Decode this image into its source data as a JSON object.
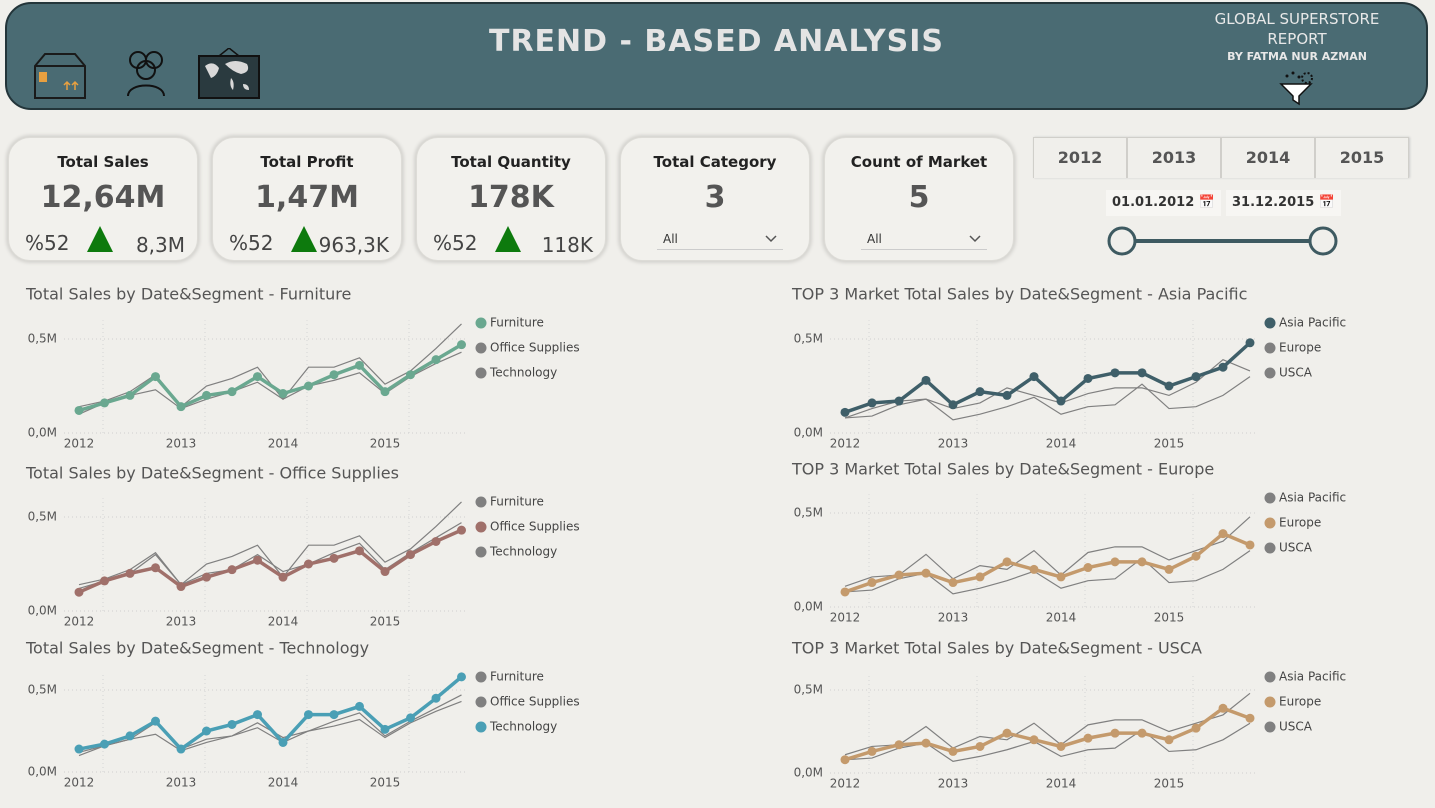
{
  "header": {
    "title": "TREND - BASED ANALYSIS",
    "report": "GLOBAL SUPERSTORE REPORT",
    "author": "BY FATMA NUR AZMAN"
  },
  "kpis": [
    {
      "title": "Total Sales",
      "value": "12,64M",
      "percent": "%52",
      "target": "8,3M"
    },
    {
      "title": "Total Profit",
      "value": "1,47M",
      "percent": "%52",
      "target": "963,3K"
    },
    {
      "title": "Total Quantity",
      "value": "178K",
      "percent": "%52",
      "target": "118K"
    },
    {
      "title": "Total Category",
      "value": 3,
      "filter": "All"
    },
    {
      "title": "Count of Market",
      "value": 5,
      "filter": "All"
    }
  ],
  "year_tabs": [
    "2012",
    "2013",
    "2014",
    "2015"
  ],
  "date_range": {
    "start": "01.01.2012",
    "end": "31.12.2015"
  },
  "chart_data": [
    {
      "type": "line",
      "title": "Total Sales by Date&Segment - Furniture",
      "categories": [
        "2012",
        null,
        null,
        null,
        "2013",
        null,
        null,
        null,
        "2014",
        null,
        null,
        null,
        "2015",
        null,
        null,
        null
      ],
      "ylim": [
        0,
        0.6
      ],
      "yticks": [
        {
          "value": 0,
          "label": "0,0M"
        },
        {
          "value": 0.5,
          "label": "0,5M"
        }
      ],
      "grid": true,
      "series": [
        {
          "name": "Furniture",
          "color": "#6aa890",
          "markers": true,
          "values": [
            0.12,
            0.16,
            0.2,
            0.3,
            0.14,
            0.2,
            0.22,
            0.3,
            0.21,
            0.25,
            0.31,
            0.36,
            0.22,
            0.31,
            0.39,
            0.47
          ]
        },
        {
          "name": "Office Supplies",
          "color": "#808080",
          "markers": false,
          "values": [
            0.1,
            0.16,
            0.2,
            0.23,
            0.13,
            0.18,
            0.22,
            0.27,
            0.18,
            0.25,
            0.28,
            0.32,
            0.21,
            0.3,
            0.37,
            0.43
          ]
        },
        {
          "name": "Technology",
          "color": "#808080",
          "markers": false,
          "values": [
            0.14,
            0.17,
            0.22,
            0.31,
            0.14,
            0.25,
            0.29,
            0.35,
            0.18,
            0.35,
            0.35,
            0.4,
            0.26,
            0.33,
            0.45,
            0.58
          ]
        }
      ]
    },
    {
      "type": "line",
      "title": "Total Sales by Date&Segment - Office Supplies",
      "categories": [
        "2012",
        null,
        null,
        null,
        "2013",
        null,
        null,
        null,
        "2014",
        null,
        null,
        null,
        "2015",
        null,
        null,
        null
      ],
      "ylim": [
        0,
        0.6
      ],
      "yticks": [
        {
          "value": 0,
          "label": "0,0M"
        },
        {
          "value": 0.5,
          "label": "0,5M"
        }
      ],
      "grid": true,
      "series": [
        {
          "name": "Furniture",
          "color": "#808080",
          "markers": false,
          "values": [
            0.12,
            0.16,
            0.2,
            0.3,
            0.14,
            0.2,
            0.22,
            0.3,
            0.21,
            0.25,
            0.31,
            0.36,
            0.22,
            0.31,
            0.39,
            0.47
          ]
        },
        {
          "name": "Office Supplies",
          "color": "#a0706a",
          "markers": true,
          "values": [
            0.1,
            0.16,
            0.2,
            0.23,
            0.13,
            0.18,
            0.22,
            0.27,
            0.18,
            0.25,
            0.28,
            0.32,
            0.21,
            0.3,
            0.37,
            0.43
          ]
        },
        {
          "name": "Technology",
          "color": "#808080",
          "markers": false,
          "values": [
            0.14,
            0.17,
            0.22,
            0.31,
            0.14,
            0.25,
            0.29,
            0.35,
            0.18,
            0.35,
            0.35,
            0.4,
            0.26,
            0.33,
            0.45,
            0.58
          ]
        }
      ]
    },
    {
      "type": "line",
      "title": "Total Sales by Date&Segment - Technology",
      "categories": [
        "2012",
        null,
        null,
        null,
        "2013",
        null,
        null,
        null,
        "2014",
        null,
        null,
        null,
        "2015",
        null,
        null,
        null
      ],
      "ylim": [
        0,
        0.6
      ],
      "yticks": [
        {
          "value": 0,
          "label": "0,0M"
        },
        {
          "value": 0.5,
          "label": "0,5M"
        }
      ],
      "grid": true,
      "series": [
        {
          "name": "Furniture",
          "color": "#808080",
          "markers": false,
          "values": [
            0.12,
            0.16,
            0.2,
            0.3,
            0.14,
            0.2,
            0.22,
            0.3,
            0.21,
            0.25,
            0.31,
            0.36,
            0.22,
            0.31,
            0.39,
            0.47
          ]
        },
        {
          "name": "Office Supplies",
          "color": "#808080",
          "markers": false,
          "values": [
            0.1,
            0.16,
            0.2,
            0.23,
            0.13,
            0.18,
            0.22,
            0.27,
            0.18,
            0.25,
            0.28,
            0.32,
            0.21,
            0.3,
            0.37,
            0.43
          ]
        },
        {
          "name": "Technology",
          "color": "#4a9fb5",
          "markers": true,
          "values": [
            0.14,
            0.17,
            0.22,
            0.31,
            0.14,
            0.25,
            0.29,
            0.35,
            0.18,
            0.35,
            0.35,
            0.4,
            0.26,
            0.33,
            0.45,
            0.58
          ]
        }
      ]
    },
    {
      "type": "line",
      "title": "TOP 3 Market Total Sales by Date&Segment - Asia Pacific",
      "categories": [
        "2012",
        null,
        null,
        null,
        "2013",
        null,
        null,
        null,
        "2014",
        null,
        null,
        null,
        "2015",
        null,
        null,
        null
      ],
      "ylim": [
        0,
        0.6
      ],
      "yticks": [
        {
          "value": 0,
          "label": "0,0M"
        },
        {
          "value": 0.5,
          "label": "0,5M"
        }
      ],
      "grid": true,
      "series": [
        {
          "name": "Asia Pacific",
          "color": "#3f5f69",
          "markers": true,
          "values": [
            0.11,
            0.16,
            0.17,
            0.28,
            0.15,
            0.22,
            0.2,
            0.3,
            0.17,
            0.29,
            0.32,
            0.32,
            0.25,
            0.3,
            0.35,
            0.48
          ]
        },
        {
          "name": "Europe",
          "color": "#808080",
          "markers": false,
          "values": [
            0.08,
            0.13,
            0.17,
            0.18,
            0.13,
            0.16,
            0.24,
            0.2,
            0.16,
            0.21,
            0.24,
            0.24,
            0.2,
            0.27,
            0.39,
            0.33
          ]
        },
        {
          "name": "USCA",
          "color": "#808080",
          "markers": false,
          "values": [
            0.08,
            0.09,
            0.15,
            0.18,
            0.07,
            0.1,
            0.14,
            0.19,
            0.1,
            0.14,
            0.15,
            0.26,
            0.13,
            0.14,
            0.2,
            0.3
          ]
        }
      ]
    },
    {
      "type": "line",
      "title": "TOP 3 Market Total Sales by Date&Segment - Europe",
      "categories": [
        "2012",
        null,
        null,
        null,
        "2013",
        null,
        null,
        null,
        "2014",
        null,
        null,
        null,
        "2015",
        null,
        null,
        null
      ],
      "ylim": [
        0,
        0.6
      ],
      "yticks": [
        {
          "value": 0,
          "label": "0,0M"
        },
        {
          "value": 0.5,
          "label": "0,5M"
        }
      ],
      "grid": true,
      "series": [
        {
          "name": "Asia Pacific",
          "color": "#808080",
          "markers": false,
          "values": [
            0.11,
            0.16,
            0.17,
            0.28,
            0.15,
            0.22,
            0.2,
            0.3,
            0.17,
            0.29,
            0.32,
            0.32,
            0.25,
            0.3,
            0.35,
            0.48
          ]
        },
        {
          "name": "Europe",
          "color": "#c49a6c",
          "markers": true,
          "values": [
            0.08,
            0.13,
            0.17,
            0.18,
            0.13,
            0.16,
            0.24,
            0.2,
            0.16,
            0.21,
            0.24,
            0.24,
            0.2,
            0.27,
            0.39,
            0.33
          ]
        },
        {
          "name": "USCA",
          "color": "#808080",
          "markers": false,
          "values": [
            0.08,
            0.09,
            0.15,
            0.18,
            0.07,
            0.1,
            0.14,
            0.19,
            0.1,
            0.14,
            0.15,
            0.26,
            0.13,
            0.14,
            0.2,
            0.3
          ]
        }
      ]
    },
    {
      "type": "line",
      "title": "TOP 3 Market Total Sales by Date&Segment - USCA",
      "categories": [
        "2012",
        null,
        null,
        null,
        "2013",
        null,
        null,
        null,
        "2014",
        null,
        null,
        null,
        "2015",
        null,
        null,
        null
      ],
      "ylim": [
        0,
        0.6
      ],
      "yticks": [
        {
          "value": 0,
          "label": "0,0M"
        },
        {
          "value": 0.5,
          "label": "0,5M"
        }
      ],
      "grid": true,
      "series": [
        {
          "name": "Asia Pacific",
          "color": "#808080",
          "markers": false,
          "values": [
            0.11,
            0.16,
            0.17,
            0.28,
            0.15,
            0.22,
            0.2,
            0.3,
            0.17,
            0.29,
            0.32,
            0.32,
            0.25,
            0.3,
            0.35,
            0.48
          ]
        },
        {
          "name": "Europe",
          "color": "#c49a6c",
          "markers": true,
          "values": [
            0.08,
            0.13,
            0.17,
            0.18,
            0.13,
            0.16,
            0.24,
            0.2,
            0.16,
            0.21,
            0.24,
            0.24,
            0.2,
            0.27,
            0.39,
            0.33
          ]
        },
        {
          "name": "USCA",
          "color": "#808080",
          "markers": false,
          "values": [
            0.08,
            0.09,
            0.15,
            0.18,
            0.07,
            0.1,
            0.14,
            0.19,
            0.1,
            0.14,
            0.15,
            0.26,
            0.13,
            0.14,
            0.2,
            0.3
          ]
        }
      ]
    }
  ]
}
